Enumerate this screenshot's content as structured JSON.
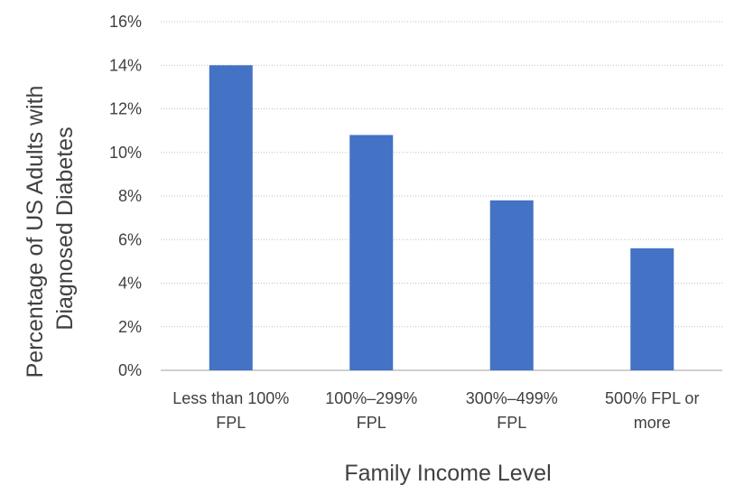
{
  "chart_data": {
    "type": "bar",
    "categories": [
      [
        "Less than 100%",
        "FPL"
      ],
      [
        "100%–299%",
        "FPL"
      ],
      [
        "300%–499%",
        "FPL"
      ],
      [
        "500% FPL or",
        "more"
      ]
    ],
    "values": [
      0.14,
      0.108,
      0.078,
      0.056
    ],
    "xlabel": "Family Income Level",
    "ylabel": [
      "Percentage of US Adults with",
      "Diagnosed Diabetes"
    ],
    "ylim": [
      0,
      0.16
    ],
    "yticks": [
      0,
      0.02,
      0.04,
      0.06,
      0.08,
      0.1,
      0.12,
      0.14,
      0.16
    ],
    "ytick_labels": [
      "0%",
      "2%",
      "4%",
      "6%",
      "8%",
      "10%",
      "12%",
      "14%",
      "16%"
    ],
    "grid": true,
    "legend": "none",
    "colors": {
      "bar": "#4472c4",
      "grid": "#bfbfbf",
      "text": "#404040"
    }
  }
}
